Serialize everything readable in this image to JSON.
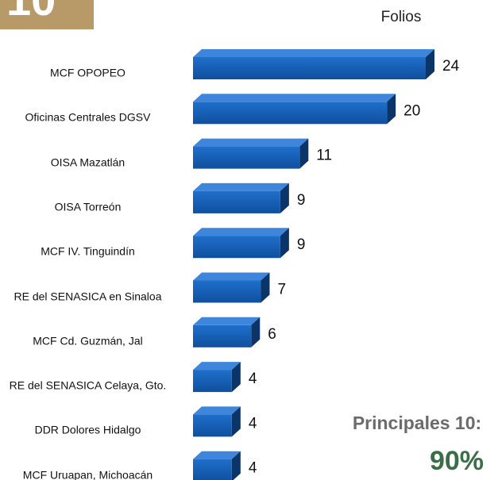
{
  "chart_data": {
    "type": "bar",
    "orientation": "horizontal",
    "badge": "10",
    "x_label": "Folios",
    "categories": [
      "MCF OPOPEO",
      "Oficinas Centrales DGSV",
      "OISA Mazatlán",
      "OISA Torreón",
      "MCF IV. Tinguindín",
      "RE del SENASICA en Sinaloa",
      "MCF Cd. Guzmán, Jal",
      "RE del SENASICA Celaya, Gto.",
      "DDR Dolores Hidalgo",
      "MCF Uruapan, Michoacán"
    ],
    "values": [
      24,
      20,
      11,
      9,
      9,
      7,
      6,
      4,
      4,
      4
    ],
    "color": "#1565c0",
    "xlim": [
      0,
      24
    ],
    "annotations": [
      "Principales 10:",
      "90%"
    ]
  }
}
